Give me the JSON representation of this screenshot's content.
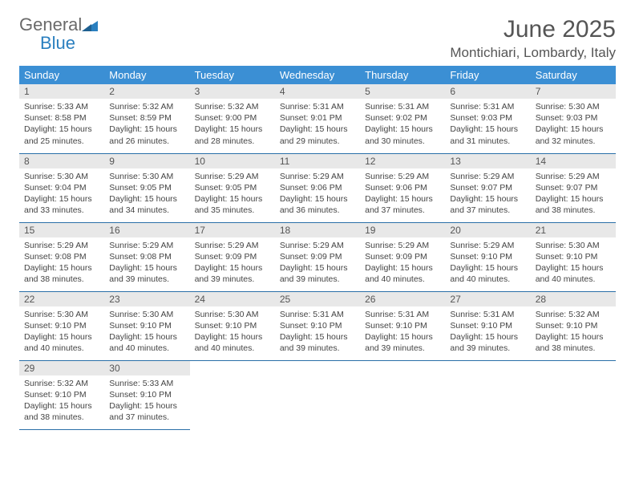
{
  "brand": {
    "part1": "General",
    "part2": "Blue"
  },
  "title": "June 2025",
  "location": "Montichiari, Lombardy, Italy",
  "colors": {
    "header_bg": "#3b8fd4",
    "header_text": "#ffffff",
    "daynum_bg": "#e8e8e8",
    "row_border": "#2a6fa8",
    "brand_gray": "#6a6a6a",
    "brand_blue": "#2a7fbf",
    "text": "#444444",
    "background": "#ffffff"
  },
  "typography": {
    "title_fontsize": 30,
    "location_fontsize": 17,
    "dayhead_fontsize": 13,
    "daynum_fontsize": 12,
    "body_fontsize": 10.5
  },
  "day_headers": [
    "Sunday",
    "Monday",
    "Tuesday",
    "Wednesday",
    "Thursday",
    "Friday",
    "Saturday"
  ],
  "cells": [
    {
      "n": "1",
      "sr": "5:33 AM",
      "ss": "8:58 PM",
      "dl": "15 hours and 25 minutes."
    },
    {
      "n": "2",
      "sr": "5:32 AM",
      "ss": "8:59 PM",
      "dl": "15 hours and 26 minutes."
    },
    {
      "n": "3",
      "sr": "5:32 AM",
      "ss": "9:00 PM",
      "dl": "15 hours and 28 minutes."
    },
    {
      "n": "4",
      "sr": "5:31 AM",
      "ss": "9:01 PM",
      "dl": "15 hours and 29 minutes."
    },
    {
      "n": "5",
      "sr": "5:31 AM",
      "ss": "9:02 PM",
      "dl": "15 hours and 30 minutes."
    },
    {
      "n": "6",
      "sr": "5:31 AM",
      "ss": "9:03 PM",
      "dl": "15 hours and 31 minutes."
    },
    {
      "n": "7",
      "sr": "5:30 AM",
      "ss": "9:03 PM",
      "dl": "15 hours and 32 minutes."
    },
    {
      "n": "8",
      "sr": "5:30 AM",
      "ss": "9:04 PM",
      "dl": "15 hours and 33 minutes."
    },
    {
      "n": "9",
      "sr": "5:30 AM",
      "ss": "9:05 PM",
      "dl": "15 hours and 34 minutes."
    },
    {
      "n": "10",
      "sr": "5:29 AM",
      "ss": "9:05 PM",
      "dl": "15 hours and 35 minutes."
    },
    {
      "n": "11",
      "sr": "5:29 AM",
      "ss": "9:06 PM",
      "dl": "15 hours and 36 minutes."
    },
    {
      "n": "12",
      "sr": "5:29 AM",
      "ss": "9:06 PM",
      "dl": "15 hours and 37 minutes."
    },
    {
      "n": "13",
      "sr": "5:29 AM",
      "ss": "9:07 PM",
      "dl": "15 hours and 37 minutes."
    },
    {
      "n": "14",
      "sr": "5:29 AM",
      "ss": "9:07 PM",
      "dl": "15 hours and 38 minutes."
    },
    {
      "n": "15",
      "sr": "5:29 AM",
      "ss": "9:08 PM",
      "dl": "15 hours and 38 minutes."
    },
    {
      "n": "16",
      "sr": "5:29 AM",
      "ss": "9:08 PM",
      "dl": "15 hours and 39 minutes."
    },
    {
      "n": "17",
      "sr": "5:29 AM",
      "ss": "9:09 PM",
      "dl": "15 hours and 39 minutes."
    },
    {
      "n": "18",
      "sr": "5:29 AM",
      "ss": "9:09 PM",
      "dl": "15 hours and 39 minutes."
    },
    {
      "n": "19",
      "sr": "5:29 AM",
      "ss": "9:09 PM",
      "dl": "15 hours and 40 minutes."
    },
    {
      "n": "20",
      "sr": "5:29 AM",
      "ss": "9:10 PM",
      "dl": "15 hours and 40 minutes."
    },
    {
      "n": "21",
      "sr": "5:30 AM",
      "ss": "9:10 PM",
      "dl": "15 hours and 40 minutes."
    },
    {
      "n": "22",
      "sr": "5:30 AM",
      "ss": "9:10 PM",
      "dl": "15 hours and 40 minutes."
    },
    {
      "n": "23",
      "sr": "5:30 AM",
      "ss": "9:10 PM",
      "dl": "15 hours and 40 minutes."
    },
    {
      "n": "24",
      "sr": "5:30 AM",
      "ss": "9:10 PM",
      "dl": "15 hours and 40 minutes."
    },
    {
      "n": "25",
      "sr": "5:31 AM",
      "ss": "9:10 PM",
      "dl": "15 hours and 39 minutes."
    },
    {
      "n": "26",
      "sr": "5:31 AM",
      "ss": "9:10 PM",
      "dl": "15 hours and 39 minutes."
    },
    {
      "n": "27",
      "sr": "5:31 AM",
      "ss": "9:10 PM",
      "dl": "15 hours and 39 minutes."
    },
    {
      "n": "28",
      "sr": "5:32 AM",
      "ss": "9:10 PM",
      "dl": "15 hours and 38 minutes."
    },
    {
      "n": "29",
      "sr": "5:32 AM",
      "ss": "9:10 PM",
      "dl": "15 hours and 38 minutes."
    },
    {
      "n": "30",
      "sr": "5:33 AM",
      "ss": "9:10 PM",
      "dl": "15 hours and 37 minutes."
    }
  ],
  "labels": {
    "sunrise": "Sunrise:",
    "sunset": "Sunset:",
    "daylight": "Daylight:"
  }
}
